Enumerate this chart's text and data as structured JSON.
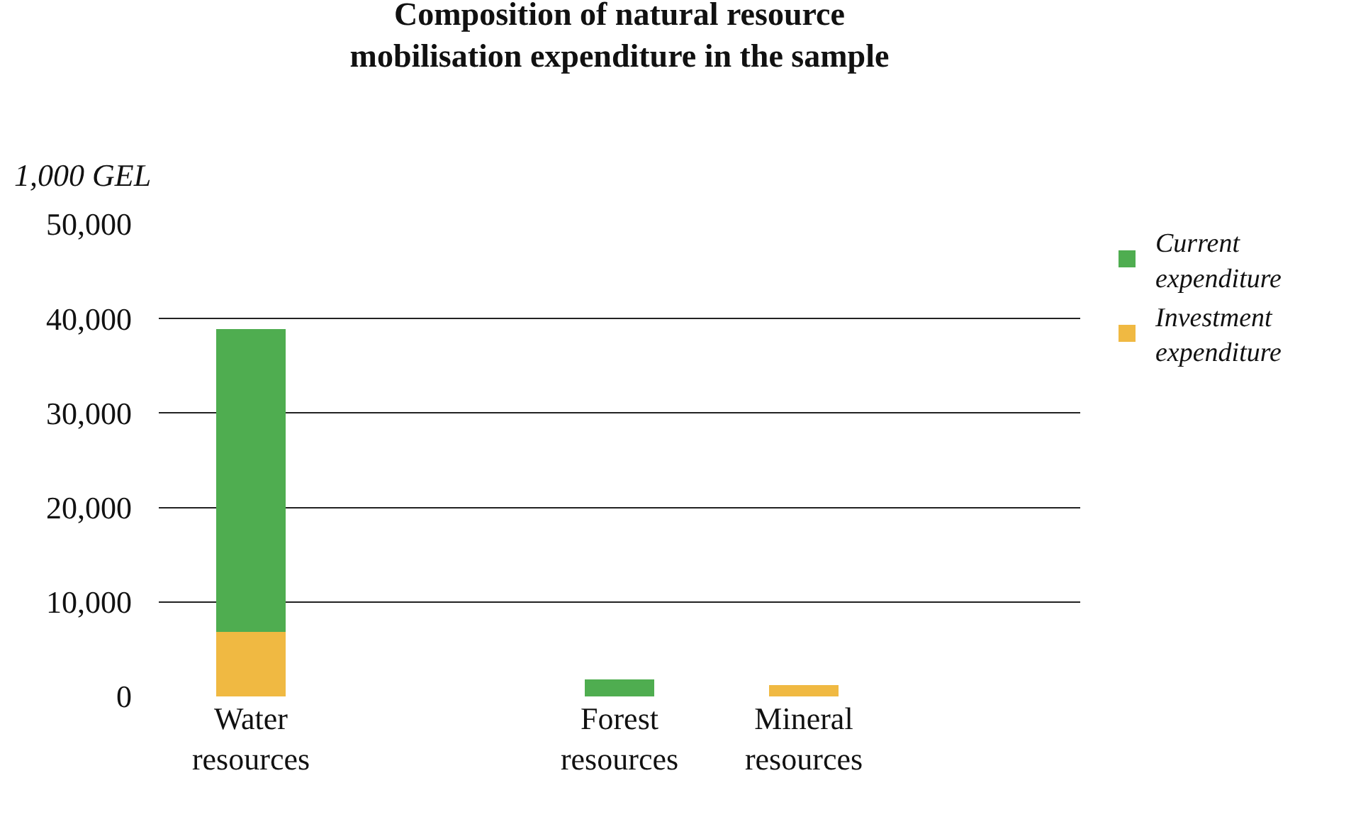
{
  "chart_data": {
    "type": "bar",
    "title": "Composition of natural resource mobilisation expenditure in the sample",
    "ylabel": "1,000 GEL",
    "categories": [
      "Water resources",
      null,
      "Forest resources",
      "Mineral resources",
      null
    ],
    "stacked": true,
    "series": [
      {
        "name": "Investment expenditure",
        "color": "#f0b942",
        "values": [
          6800,
          null,
          null,
          1200,
          null
        ]
      },
      {
        "name": "Current expenditure",
        "color": "#4fad50",
        "values": [
          32100,
          null,
          1800,
          null,
          null
        ]
      }
    ],
    "ylim": [
      0,
      50000
    ],
    "yticks": [
      {
        "value": 0,
        "label": "0"
      },
      {
        "value": 10000,
        "label": "10,000"
      },
      {
        "value": 20000,
        "label": "20,000"
      },
      {
        "value": 30000,
        "label": "30,000"
      },
      {
        "value": 40000,
        "label": "40,000"
      },
      {
        "value": 50000,
        "label": "50,000"
      }
    ],
    "grid": "y",
    "legend": "top right"
  }
}
